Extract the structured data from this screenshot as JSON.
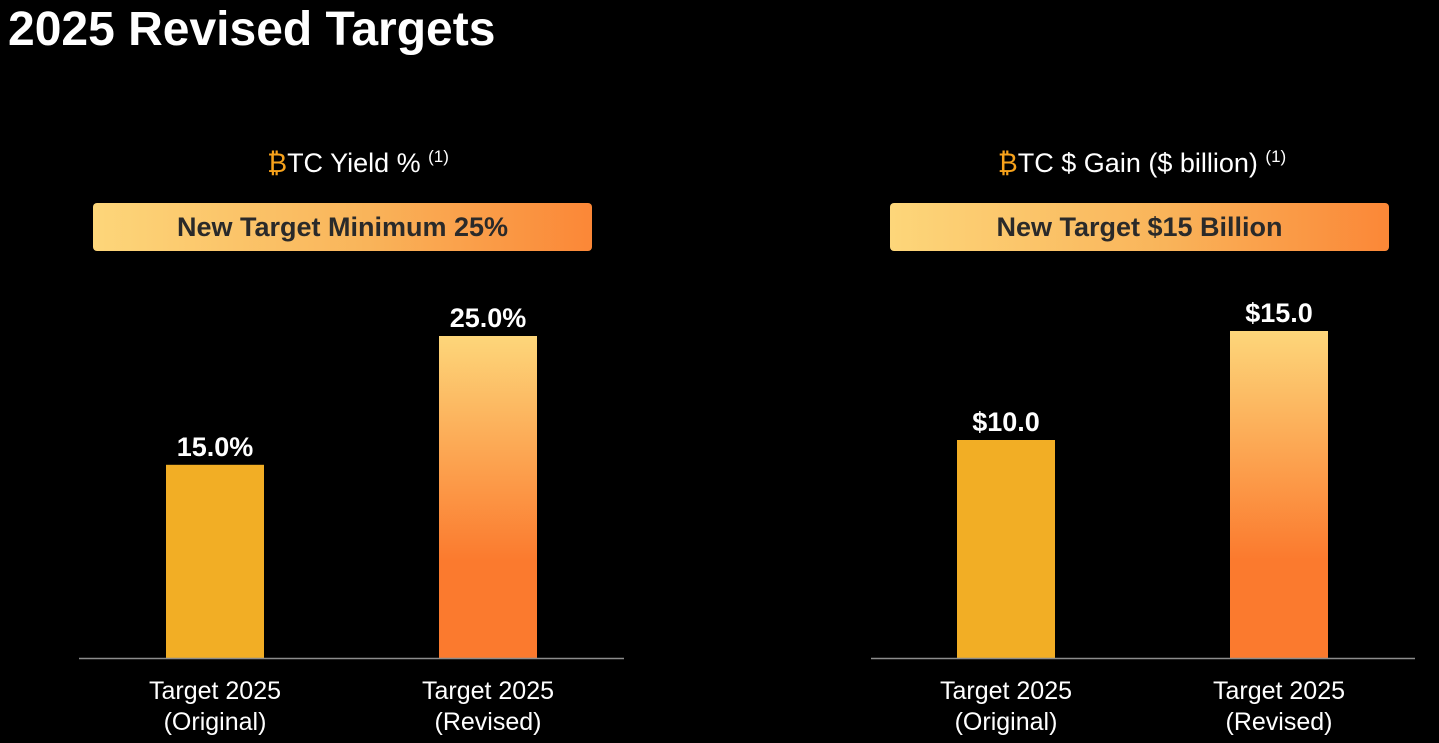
{
  "page_title": "2025 Revised Targets",
  "colors": {
    "background": "#000000",
    "original_bar": "#f2ae25",
    "revised_bar_top": "#fdd67a",
    "revised_bar_bottom": "#fb7a2e",
    "btc_glyph": "#f7a21b",
    "axis": "#8c8c8c"
  },
  "chart_data": [
    {
      "type": "bar",
      "title_glyph": "₿",
      "title": "TC Yield %",
      "title_footnote": "(1)",
      "banner": "New Target Minimum 25%",
      "categories": [
        [
          "Target 2025",
          "(Original)"
        ],
        [
          "Target 2025",
          "(Revised)"
        ]
      ],
      "values": [
        15.0,
        25.0
      ],
      "value_labels": [
        "15.0%",
        "25.0%"
      ],
      "xlabel": "",
      "ylabel": "",
      "ylim": [
        0,
        25
      ],
      "grid": false,
      "legend": "none"
    },
    {
      "type": "bar",
      "title_glyph": "₿",
      "title": "TC $ Gain ($ billion)",
      "title_footnote": "(1)",
      "banner": "New Target $15 Billion",
      "categories": [
        [
          "Target 2025",
          "(Original)"
        ],
        [
          "Target 2025",
          "(Revised)"
        ]
      ],
      "values": [
        10.0,
        15.0
      ],
      "value_labels": [
        "$10.0",
        "$15.0"
      ],
      "xlabel": "",
      "ylabel": "",
      "ylim": [
        0,
        15
      ],
      "grid": false,
      "legend": "none"
    }
  ]
}
